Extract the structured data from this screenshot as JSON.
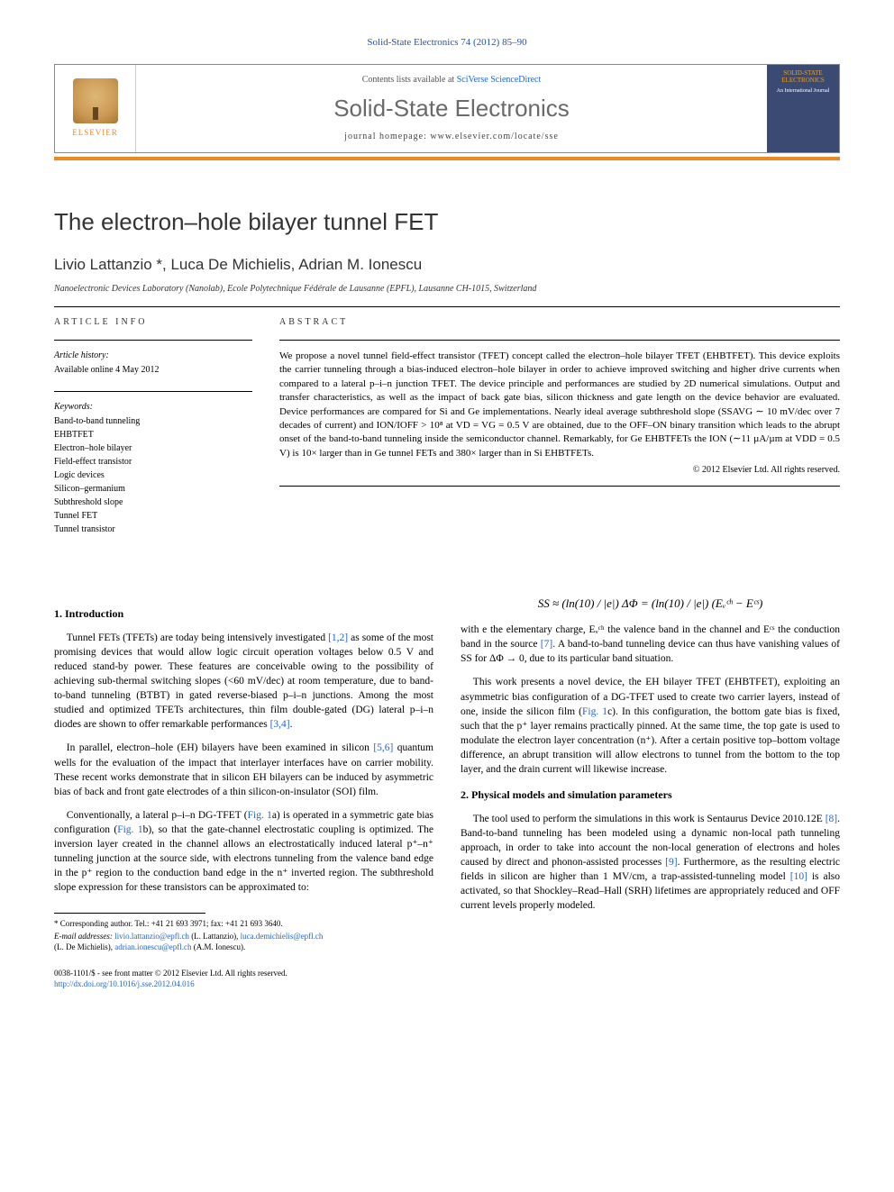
{
  "journal_ref": "Solid-State Electronics 74 (2012) 85–90",
  "header": {
    "elsevier": "ELSEVIER",
    "contents_prefix": "Contents lists available at ",
    "contents_link": "SciVerse ScienceDirect",
    "journal_title": "Solid-State Electronics",
    "homepage_prefix": "journal homepage: ",
    "homepage_url": "www.elsevier.com/locate/sse",
    "cover_title": "SOLID-STATE ELECTRONICS",
    "cover_sub": "An International Journal"
  },
  "paper": {
    "title": "The electron–hole bilayer tunnel FET",
    "authors": "Livio Lattanzio *, Luca De Michielis, Adrian M. Ionescu",
    "affiliation": "Nanoelectronic Devices Laboratory (Nanolab), Ecole Polytechnique Fédérale de Lausanne (EPFL), Lausanne CH-1015, Switzerland"
  },
  "labels": {
    "article_info": "ARTICLE INFO",
    "abstract": "ABSTRACT"
  },
  "article_info": {
    "history_head": "Article history:",
    "history_line": "Available online 4 May 2012",
    "keywords_head": "Keywords:",
    "keywords": [
      "Band-to-band tunneling",
      "EHBTFET",
      "Electron–hole bilayer",
      "Field-effect transistor",
      "Logic devices",
      "Silicon–germanium",
      "Subthreshold slope",
      "Tunnel FET",
      "Tunnel transistor"
    ]
  },
  "abstract": {
    "text": "We propose a novel tunnel field-effect transistor (TFET) concept called the electron–hole bilayer TFET (EHBTFET). This device exploits the carrier tunneling through a bias-induced electron–hole bilayer in order to achieve improved switching and higher drive currents when compared to a lateral p–i–n junction TFET. The device principle and performances are studied by 2D numerical simulations. Output and transfer characteristics, as well as the impact of back gate bias, silicon thickness and gate length on the device behavior are evaluated. Device performances are compared for Si and Ge implementations. Nearly ideal average subthreshold slope (SSAVG ∼ 10 mV/dec over 7 decades of current) and ION/IOFF > 10⁸ at VD = VG = 0.5 V are obtained, due to the OFF–ON binary transition which leads to the abrupt onset of the band-to-band tunneling inside the semiconductor channel. Remarkably, for Ge EHBTFETs the ION (∼11 µA/µm at VDD = 0.5 V) is 10× larger than in Ge tunnel FETs and 380× larger than in Si EHBTFETs.",
    "copyright": "© 2012 Elsevier Ltd. All rights reserved."
  },
  "sections": {
    "intro_head": "1. Introduction",
    "intro_p1a": "Tunnel FETs (TFETs) are today being intensively investigated ",
    "intro_p1_ref1": "[1,2]",
    "intro_p1b": " as some of the most promising devices that would allow logic circuit operation voltages below 0.5 V and reduced stand-by power. These features are conceivable owing to the possibility of achieving sub-thermal switching slopes (<60 mV/dec) at room temperature, due to band-to-band tunneling (BTBT) in gated reverse-biased p–i–n junctions. Among the most studied and optimized TFETs architectures, thin film double-gated (DG) lateral p–i–n diodes are shown to offer remarkable performances ",
    "intro_p1_ref2": "[3,4]",
    "intro_p1c": ".",
    "intro_p2a": "In parallel, electron–hole (EH) bilayers have been examined in silicon ",
    "intro_p2_ref1": "[5,6]",
    "intro_p2b": " quantum wells for the evaluation of the impact that interlayer interfaces have on carrier mobility. These recent works demonstrate that in silicon EH bilayers can be induced by asymmetric bias of back and front gate electrodes of a thin silicon-on-insulator (SOI) film.",
    "intro_p3a": "Conventionally, a lateral p–i–n DG-TFET (",
    "intro_p3_fig1a": "Fig. 1",
    "intro_p3b": "a) is operated in a symmetric gate bias configuration (",
    "intro_p3_fig1b": "Fig. 1",
    "intro_p3c": "b), so that the gate-channel electrostatic coupling is optimized. The inversion layer created in the channel allows an electrostatically induced lateral p⁺–n⁺ tunneling junction at the source side, with electrons tunneling from the valence band edge in the p⁺ region to the conduction band edge in the n⁺ inverted region. The subthreshold slope expression for these transistors can be approximated to:",
    "equation": "SS ≈ (ln(10) / |e|) ΔΦ = (ln(10) / |e|) (Eᵥᶜʰ − Eᶜˢ)",
    "intro_p4a": "with e the elementary charge, Eᵥᶜʰ the valence band in the channel and Eᶜˢ the conduction band in the source ",
    "intro_p4_ref": "[7]",
    "intro_p4b": ". A band-to-band tunneling device can thus have vanishing values of SS for ΔΦ → 0, due to its particular band situation.",
    "intro_p5a": "This work presents a novel device, the EH bilayer TFET (EHBTFET), exploiting an asymmetric bias configuration of a DG-TFET used to create two carrier layers, instead of one, inside the silicon film (",
    "intro_p5_fig": "Fig. 1",
    "intro_p5b": "c). In this configuration, the bottom gate bias is fixed, such that the p⁺ layer remains practically pinned. At the same time, the top gate is used to modulate the electron layer concentration (n⁺). After a certain positive top–bottom voltage difference, an abrupt transition will allow electrons to tunnel from the bottom to the top layer, and the drain current will likewise increase.",
    "models_head": "2. Physical models and simulation parameters",
    "models_p1a": "The tool used to perform the simulations in this work is Sentaurus Device 2010.12E ",
    "models_ref1": "[8]",
    "models_p1b": ". Band-to-band tunneling has been modeled using a dynamic non-local path tunneling approach, in order to take into account the non-local generation of electrons and holes caused by direct and phonon-assisted processes ",
    "models_ref2": "[9]",
    "models_p1c": ". Furthermore, as the resulting electric fields in silicon are higher than 1 MV/cm, a trap-assisted-tunneling model ",
    "models_ref3": "[10]",
    "models_p1d": " is also activated, so that Shockley–Read–Hall (SRH) lifetimes are appropriately reduced and OFF current levels properly modeled."
  },
  "footnotes": {
    "corr": "* Corresponding author. Tel.: +41 21 693 3971; fax: +41 21 693 3640.",
    "emails_label": "E-mail addresses: ",
    "email1": "livio.lattanzio@epfl.ch",
    "email1_who": " (L. Lattanzio), ",
    "email2": "luca.demichielis@epfl.ch",
    "email2_who": " (L. De Michielis), ",
    "email3": "adrian.ionescu@epfl.ch",
    "email3_who": " (A.M. Ionescu)."
  },
  "bottom": {
    "line1": "0038-1101/$ - see front matter © 2012 Elsevier Ltd. All rights reserved.",
    "doi_label": "http://dx.doi.org/",
    "doi": "10.1016/j.sse.2012.04.016"
  },
  "colors": {
    "link": "#2266cc",
    "orange": "#ee8822",
    "cover_bg": "#3a4a72"
  }
}
